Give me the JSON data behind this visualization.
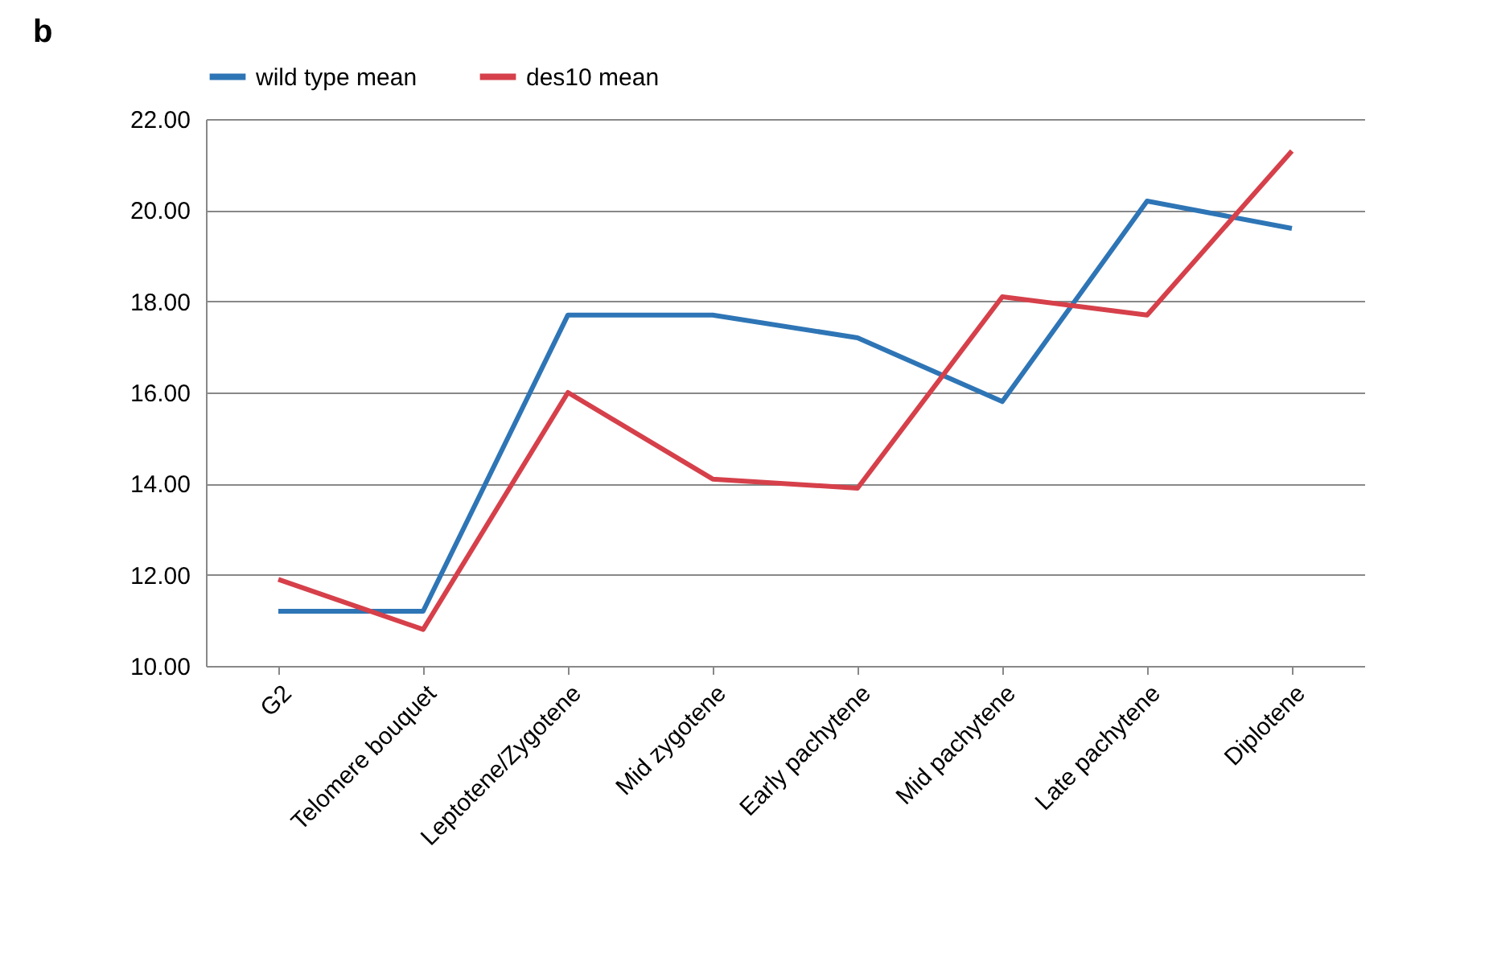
{
  "chart_data": {
    "type": "line",
    "title": "b",
    "categories": [
      "G2",
      "Telomere bouquet",
      "Leptotene/Zygotene",
      "Mid zygotene",
      "Early pachytene",
      "Mid pachytene",
      "Late pachytene",
      "Diplotene"
    ],
    "series": [
      {
        "name": "wild type mean",
        "color": "#2e75b6",
        "values": [
          11.2,
          11.2,
          17.7,
          17.7,
          17.2,
          15.8,
          20.2,
          19.6
        ]
      },
      {
        "name": "des10 mean",
        "color": "#d6404a",
        "values": [
          11.9,
          10.8,
          16.0,
          14.1,
          13.9,
          18.1,
          17.7,
          21.3
        ]
      }
    ],
    "ylim": [
      10,
      22
    ],
    "yticks": [
      {
        "value": 10,
        "label": "10.00"
      },
      {
        "value": 12,
        "label": "12.00"
      },
      {
        "value": 14,
        "label": "14.00"
      },
      {
        "value": 16,
        "label": "16.00"
      },
      {
        "value": 18,
        "label": "18.00"
      },
      {
        "value": 20,
        "label": "20.00"
      },
      {
        "value": 22,
        "label": "22.00"
      }
    ],
    "grid": "y",
    "legend": "top",
    "marker": "none",
    "line_style": "solid"
  }
}
